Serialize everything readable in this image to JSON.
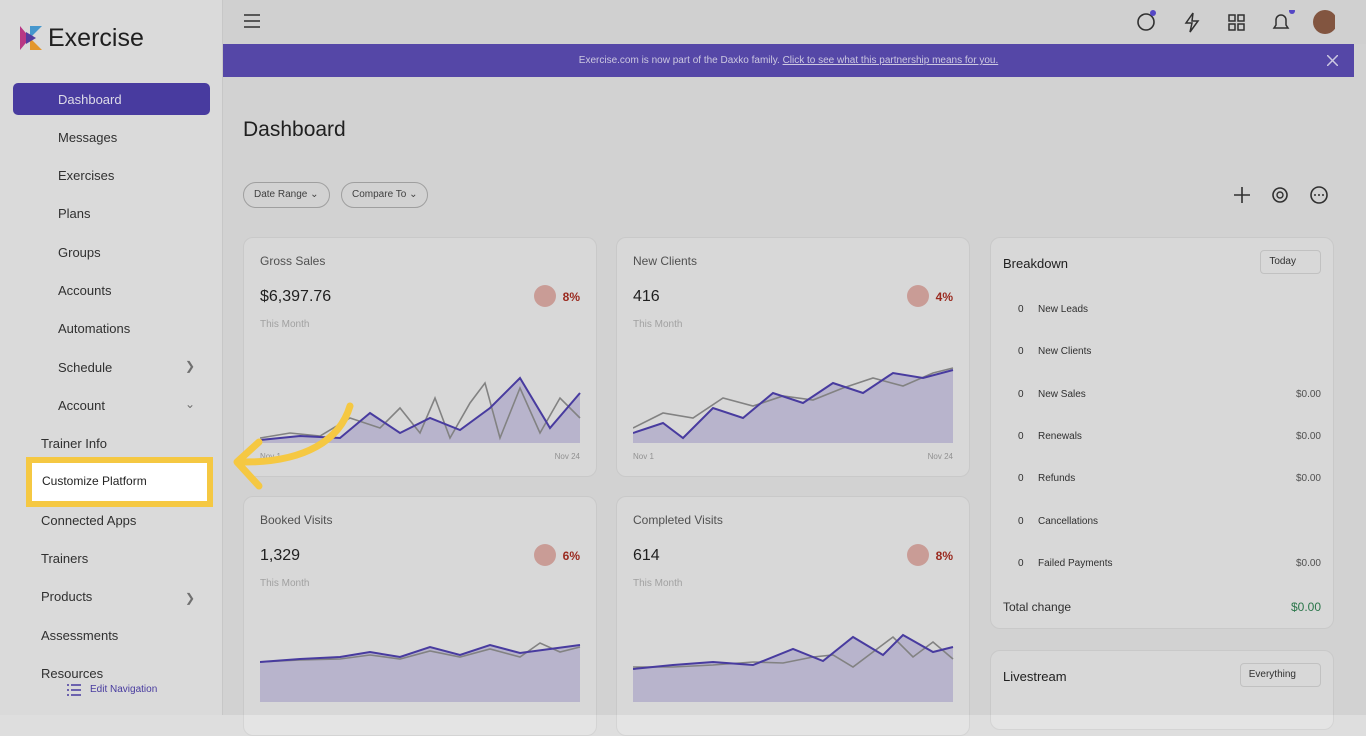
{
  "brand": "Exercise",
  "nav": {
    "items": [
      "Dashboard",
      "Messages",
      "Exercises",
      "Plans",
      "Groups",
      "Accounts",
      "Automations",
      "Schedule",
      "Account"
    ],
    "sub_items": [
      "Trainer Info",
      "Customize Platform",
      "Connected Apps",
      "Trainers",
      "Products",
      "Assessments",
      "Resources"
    ],
    "edit": "Edit Navigation"
  },
  "banner": {
    "text": "Exercise.com is now part of the Daxko family.",
    "link": "Click to see what this partnership means for you."
  },
  "page_title": "Dashboard",
  "filters": [
    "Date Range",
    "Compare To"
  ],
  "cards": [
    {
      "title": "Gross Sales",
      "value": "$6,397.76",
      "change": "8%",
      "period": "This Month",
      "start": "Nov 1",
      "end": "Nov 24"
    },
    {
      "title": "New Clients",
      "value": "416",
      "change": "4%",
      "period": "This Month",
      "start": "Nov 1",
      "end": "Nov 24"
    },
    {
      "title": "Booked Visits",
      "value": "1,329",
      "change": "6%",
      "period": "This Month"
    },
    {
      "title": "Completed Visits",
      "value": "614",
      "change": "8%",
      "period": "This Month"
    }
  ],
  "breakdown": {
    "title": "Breakdown",
    "period": "Today",
    "rows": [
      {
        "count": 0,
        "label": "New Leads"
      },
      {
        "count": 0,
        "label": "New Clients"
      },
      {
        "count": 0,
        "label": "New Sales",
        "amount": "$0.00"
      },
      {
        "count": 0,
        "label": "Renewals",
        "amount": "$0.00"
      },
      {
        "count": 0,
        "label": "Refunds",
        "amount": "$0.00"
      },
      {
        "count": 0,
        "label": "Cancellations"
      },
      {
        "count": 0,
        "label": "Failed Payments",
        "amount": "$0.00"
      }
    ],
    "total_label": "Total change",
    "total": "$0.00"
  },
  "livestream": {
    "title": "Livestream",
    "filter": "Everything"
  }
}
